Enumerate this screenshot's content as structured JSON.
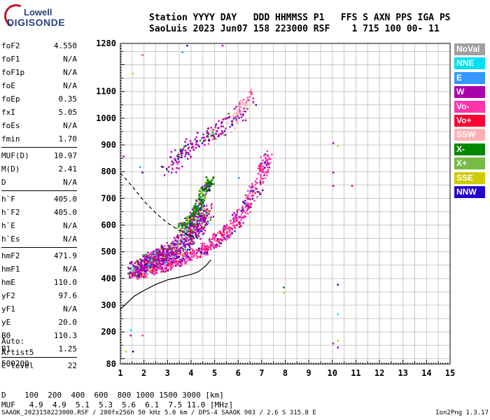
{
  "logo": {
    "line1": "Lowell",
    "line2": "DIGISONDE"
  },
  "header": {
    "line1": "Station YYYY DAY   DDD HHMMSS P1   FFS S AXN PPS IGA PS",
    "line2": "SaoLuis 2023 Jun07 158 223000 RSF    1 715 100 00- 11"
  },
  "params": {
    "group1": [
      {
        "label": "foF2",
        "value": "4.550"
      },
      {
        "label": "foF1",
        "value": "N/A"
      },
      {
        "label": "foF1p",
        "value": "N/A"
      },
      {
        "label": "foE",
        "value": "N/A"
      },
      {
        "label": "foEp",
        "value": "0.35"
      },
      {
        "label": "fxI",
        "value": "5.05"
      },
      {
        "label": "foEs",
        "value": "N/A"
      },
      {
        "label": "fmin",
        "value": "1.70"
      }
    ],
    "group2": [
      {
        "label": "MUF(D)",
        "value": "10.97"
      },
      {
        "label": "M(D)",
        "value": "2.41"
      },
      {
        "label": "D",
        "value": "N/A"
      }
    ],
    "group3": [
      {
        "label": "h`F",
        "value": "405.0"
      },
      {
        "label": "h`F2",
        "value": "405.0"
      },
      {
        "label": "h`E",
        "value": "N/A"
      },
      {
        "label": "h`Es",
        "value": "N/A"
      }
    ],
    "group4": [
      {
        "label": "hmF2",
        "value": "471.9"
      },
      {
        "label": "hmF1",
        "value": "N/A"
      },
      {
        "label": "hmE",
        "value": "110.0"
      },
      {
        "label": "yF2",
        "value": "97.6"
      },
      {
        "label": "yF1",
        "value": "N/A"
      },
      {
        "label": "yE",
        "value": "20.0"
      },
      {
        "label": "B0",
        "value": "110.3"
      },
      {
        "label": "B1",
        "value": "1.25"
      }
    ],
    "group5": [
      {
        "label": "C-level",
        "value": "22"
      }
    ]
  },
  "autoscaling": {
    "line1": "Auto:",
    "line2": "Artist5",
    "line3": "500200"
  },
  "d_table": {
    "line1": "D    100  200  400  600  800 1000 1500 3000 [km]",
    "line2": "MUF   4.9  4.9  5.1  5.3  5.6  6.1  7.5 11.0 [MHz]"
  },
  "footer": {
    "left": "SAAOK_2023158223000.RSF / 280fx256h 50 kHz 5.0 km / DPS-4 SAAOK 903 / 2.6 S 315.8 E",
    "right": "Ion2Png 1.3.17"
  },
  "legend": [
    {
      "label": "NoVal",
      "color": "#a0a0a0"
    },
    {
      "label": "NNE",
      "color": "#00e0f0"
    },
    {
      "label": "E",
      "color": "#3399ff"
    },
    {
      "label": "W",
      "color": "#aa00aa"
    },
    {
      "label": "Vo-",
      "color": "#ff33aa"
    },
    {
      "label": "Vo+",
      "color": "#ff0033"
    },
    {
      "label": "SSW",
      "color": "#ffb0b0"
    },
    {
      "label": "X-",
      "color": "#008800"
    },
    {
      "label": "X+",
      "color": "#77bb44"
    },
    {
      "label": "SSE",
      "color": "#cccc00"
    },
    {
      "label": "NNW",
      "color": "#2200cc"
    }
  ],
  "chart_data": {
    "type": "scatter",
    "xlabel": "",
    "ylabel": "",
    "xlim": [
      1,
      15
    ],
    "ylim": [
      80,
      1280
    ],
    "x_ticks": [
      1,
      2,
      3,
      4,
      5,
      6,
      7,
      8,
      9,
      10,
      11,
      12,
      13,
      14,
      15
    ],
    "y_ticks": [
      80,
      200,
      300,
      400,
      500,
      600,
      700,
      800,
      900,
      1000,
      1100,
      1280
    ],
    "grid": true,
    "x_minor_step": 0.5,
    "y_grid_step": 50,
    "regions": [
      {
        "name": "O-trace",
        "dominant": "Vo-",
        "colors": [
          "Vo-",
          "W",
          "Vo+",
          "NNW"
        ],
        "points": [
          [
            1.5,
            420
          ],
          [
            2.0,
            430
          ],
          [
            2.5,
            440
          ],
          [
            3.0,
            455
          ],
          [
            3.5,
            470
          ],
          [
            4.0,
            490
          ],
          [
            4.5,
            510
          ],
          [
            5.0,
            540
          ],
          [
            5.5,
            580
          ],
          [
            6.0,
            630
          ],
          [
            6.5,
            700
          ],
          [
            7.0,
            790
          ],
          [
            7.2,
            860
          ]
        ],
        "width": 40,
        "count": 700
      },
      {
        "name": "low-cluster",
        "dominant": "W",
        "colors": [
          "W",
          "Vo-",
          "Vo+",
          "X-",
          "X+",
          "SSE",
          "NNW",
          "E",
          "NNE",
          "SSW"
        ],
        "points": [
          [
            1.5,
            430
          ],
          [
            2.0,
            460
          ],
          [
            2.5,
            480
          ],
          [
            3.0,
            500
          ],
          [
            3.5,
            530
          ],
          [
            4.0,
            570
          ],
          [
            4.3,
            610
          ],
          [
            4.6,
            660
          ]
        ],
        "width": 55,
        "count": 900
      },
      {
        "name": "X-trace",
        "dominant": "X-",
        "colors": [
          "X-",
          "X+",
          "SSE",
          "NNW",
          "W"
        ],
        "points": [
          [
            3.5,
            590
          ],
          [
            4.0,
            630
          ],
          [
            4.3,
            680
          ],
          [
            4.6,
            740
          ],
          [
            4.8,
            770
          ]
        ],
        "width": 30,
        "count": 250
      },
      {
        "name": "multi-hop",
        "dominant": "W",
        "colors": [
          "W",
          "SSW",
          "Vo-",
          "X-",
          "NNW"
        ],
        "points": [
          [
            3.0,
            810
          ],
          [
            3.5,
            860
          ],
          [
            4.0,
            900
          ],
          [
            4.5,
            930
          ],
          [
            5.0,
            950
          ],
          [
            5.5,
            980
          ],
          [
            6.0,
            1020
          ],
          [
            6.5,
            1060
          ]
        ],
        "width": 50,
        "count": 220
      },
      {
        "name": "high-ssw",
        "dominant": "SSW",
        "colors": [
          "SSW",
          "Vo-"
        ],
        "points": [
          [
            5.8,
            990
          ],
          [
            6.0,
            1030
          ],
          [
            6.3,
            1070
          ],
          [
            6.5,
            1110
          ]
        ],
        "width": 25,
        "count": 50
      }
    ],
    "isolated_points": [
      {
        "x": 1.9,
        "y": 1240,
        "c": "Vo-"
      },
      {
        "x": 1.5,
        "y": 1170,
        "c": "SSE"
      },
      {
        "x": 3.8,
        "y": 1275,
        "c": "NNW"
      },
      {
        "x": 5.3,
        "y": 1275,
        "c": "W"
      },
      {
        "x": 3.6,
        "y": 1250,
        "c": "E"
      },
      {
        "x": 1.1,
        "y": 860,
        "c": "W"
      },
      {
        "x": 1.8,
        "y": 820,
        "c": "E"
      },
      {
        "x": 1.9,
        "y": 800,
        "c": "NNW"
      },
      {
        "x": 10.0,
        "y": 910,
        "c": "W"
      },
      {
        "x": 10.0,
        "y": 800,
        "c": "W"
      },
      {
        "x": 10.0,
        "y": 750,
        "c": "W"
      },
      {
        "x": 10.2,
        "y": 900,
        "c": "SSE"
      },
      {
        "x": 10.8,
        "y": 750,
        "c": "Vo+"
      },
      {
        "x": 7.9,
        "y": 370,
        "c": "X-"
      },
      {
        "x": 7.9,
        "y": 350,
        "c": "SSE"
      },
      {
        "x": 10.2,
        "y": 380,
        "c": "NNW"
      },
      {
        "x": 10.2,
        "y": 270,
        "c": "NNE"
      },
      {
        "x": 10.0,
        "y": 160,
        "c": "W"
      },
      {
        "x": 10.2,
        "y": 170,
        "c": "SSE"
      },
      {
        "x": 10.2,
        "y": 145,
        "c": "W"
      },
      {
        "x": 1.4,
        "y": 210,
        "c": "NNE"
      },
      {
        "x": 1.4,
        "y": 190,
        "c": "W"
      },
      {
        "x": 1.9,
        "y": 190,
        "c": "Vo-"
      },
      {
        "x": 1.5,
        "y": 130,
        "c": "NNW"
      },
      {
        "x": 1.2,
        "y": 130,
        "c": "SSE"
      },
      {
        "x": 6.0,
        "y": 780,
        "c": "E"
      },
      {
        "x": 7.2,
        "y": 880,
        "c": "Vo-"
      }
    ],
    "profile_curve": {
      "name": "true-height",
      "style": "solid",
      "points": [
        [
          1.0,
          285
        ],
        [
          1.3,
          310
        ],
        [
          1.6,
          335
        ],
        [
          2.0,
          355
        ],
        [
          2.5,
          378
        ],
        [
          3.0,
          395
        ],
        [
          3.5,
          405
        ],
        [
          4.0,
          415
        ],
        [
          4.3,
          425
        ],
        [
          4.6,
          445
        ],
        [
          4.85,
          470
        ]
      ]
    },
    "dashed_curve": {
      "name": "extrapolation",
      "style": "dashed",
      "points": [
        [
          1.0,
          795
        ],
        [
          1.5,
          745
        ],
        [
          2.0,
          690
        ],
        [
          2.5,
          645
        ],
        [
          3.0,
          608
        ],
        [
          3.5,
          580
        ],
        [
          4.0,
          560
        ],
        [
          4.3,
          552
        ]
      ]
    }
  }
}
